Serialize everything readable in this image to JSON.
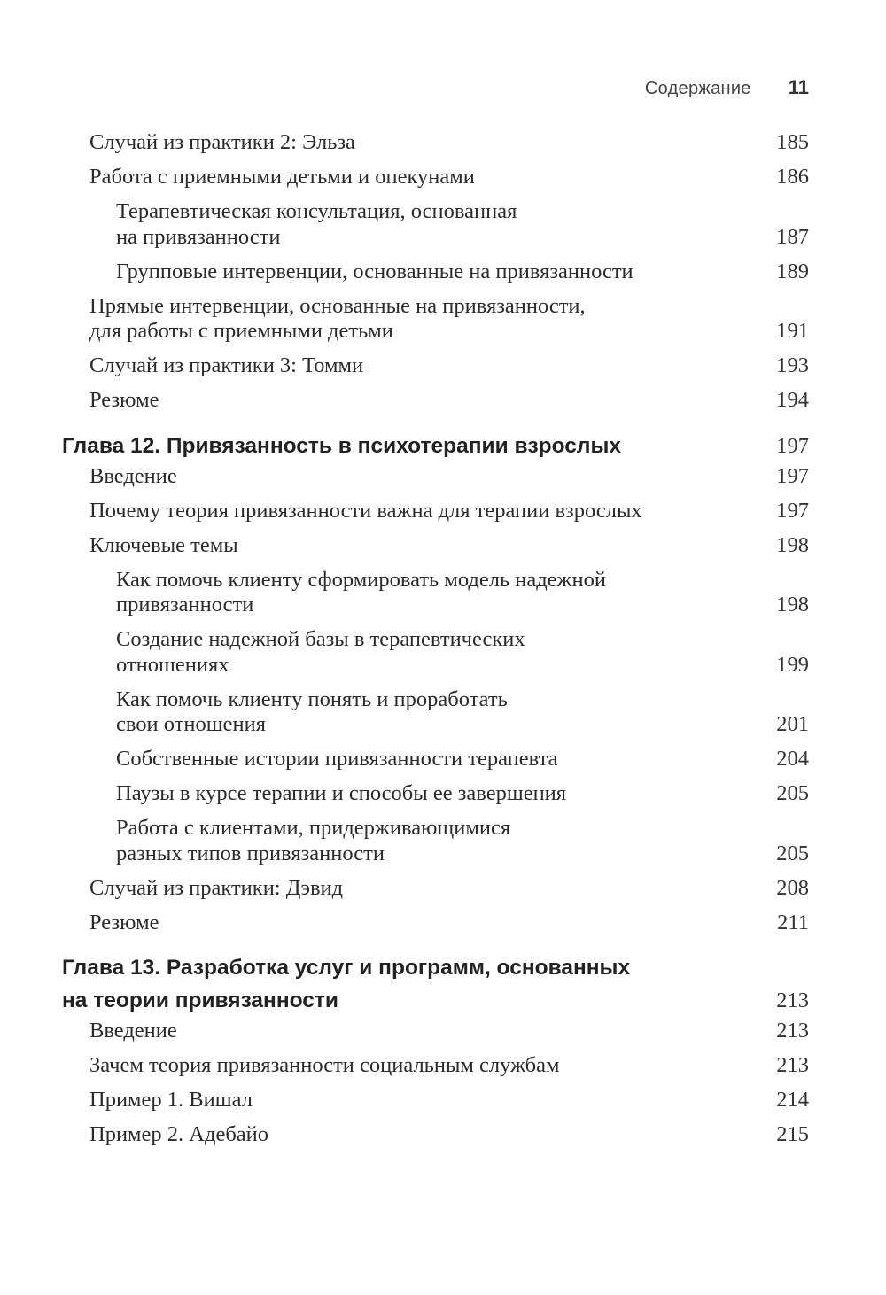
{
  "running_head": {
    "title": "Содержание",
    "page_number": "11"
  },
  "entries": [
    {
      "level": 1,
      "lines": [
        "Случай из практики 2: Эльза"
      ],
      "page": "185"
    },
    {
      "level": 1,
      "lines": [
        "Работа с приемными детьми и опекунами"
      ],
      "page": "186"
    },
    {
      "level": 2,
      "lines": [
        "Терапевтическая консультация, основанная",
        "на привязанности"
      ],
      "page": "187"
    },
    {
      "level": 2,
      "lines": [
        "Групповые интервенции, основанные на привязанности"
      ],
      "page": "189"
    },
    {
      "level": 1,
      "lines": [
        "Прямые интервенции, основанные на привязанности,",
        "для работы с приемными детьми"
      ],
      "page": "191"
    },
    {
      "level": 1,
      "lines": [
        "Случай из практики 3: Томми"
      ],
      "page": "193"
    },
    {
      "level": 1,
      "lines": [
        "Резюме"
      ],
      "page": "194"
    },
    {
      "level": 0,
      "lines": [
        "Глава 12. Привязанность в психотерапии взрослых"
      ],
      "page": "197"
    },
    {
      "level": 1,
      "lines": [
        "Введение"
      ],
      "page": "197"
    },
    {
      "level": 1,
      "lines": [
        "Почему теория привязанности важна для терапии взрослых"
      ],
      "page": "197"
    },
    {
      "level": 1,
      "lines": [
        "Ключевые темы"
      ],
      "page": "198"
    },
    {
      "level": 2,
      "lines": [
        "Как помочь клиенту сформировать модель надежной",
        "привязанности"
      ],
      "page": "198"
    },
    {
      "level": 2,
      "lines": [
        "Создание надежной базы в терапевтических",
        "отношениях"
      ],
      "page": "199"
    },
    {
      "level": 2,
      "lines": [
        "Как помочь клиенту понять и проработать",
        "свои отношения"
      ],
      "page": "201"
    },
    {
      "level": 2,
      "lines": [
        "Собственные истории привязанности терапевта"
      ],
      "page": "204"
    },
    {
      "level": 2,
      "lines": [
        "Паузы в курсе терапии и способы ее завершения"
      ],
      "page": "205"
    },
    {
      "level": 2,
      "lines": [
        "Работа с клиентами, придерживающимися",
        "разных типов привязанности"
      ],
      "page": "205"
    },
    {
      "level": 1,
      "lines": [
        "Случай из практики: Дэвид"
      ],
      "page": "208"
    },
    {
      "level": 1,
      "lines": [
        "Резюме"
      ],
      "page": "211"
    },
    {
      "level": 0,
      "lines": [
        "Глава 13. Разработка услуг и программ, основанных",
        "на теории привязанности"
      ],
      "page": "213"
    },
    {
      "level": 1,
      "lines": [
        "Введение"
      ],
      "page": "213"
    },
    {
      "level": 1,
      "lines": [
        "Зачем теория привязанности социальным службам"
      ],
      "page": "213"
    },
    {
      "level": 1,
      "lines": [
        "Пример 1. Вишал"
      ],
      "page": "214"
    },
    {
      "level": 1,
      "lines": [
        "Пример 2. Адебайо"
      ],
      "page": "215"
    }
  ]
}
